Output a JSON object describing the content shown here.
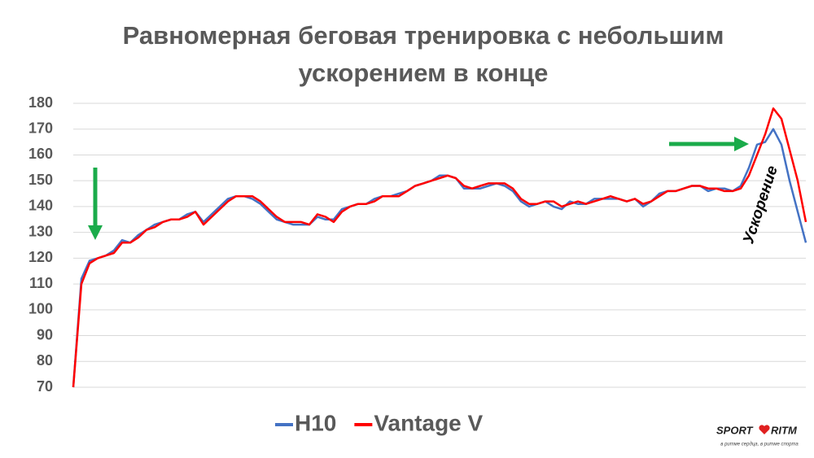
{
  "chart_data": {
    "type": "line",
    "title": [
      "Равномерная беговая тренировка с небольшим",
      "ускорением в конце"
    ],
    "ylim": [
      70,
      180
    ],
    "yticks": [
      70,
      80,
      90,
      100,
      110,
      120,
      130,
      140,
      150,
      160,
      170,
      180
    ],
    "grid": true,
    "legend": "bottom",
    "annotation": "Ускорение",
    "series": [
      {
        "name": "H10",
        "color": "#4472c4",
        "values": [
          70,
          112,
          119,
          120,
          121,
          123,
          127,
          126,
          129,
          131,
          133,
          134,
          135,
          135,
          137,
          138,
          134,
          137,
          140,
          143,
          144,
          144,
          143,
          141,
          138,
          135,
          134,
          133,
          133,
          133,
          136,
          135,
          135,
          139,
          140,
          141,
          141,
          143,
          144,
          144,
          145,
          146,
          148,
          149,
          150,
          152,
          152,
          151,
          147,
          147,
          147,
          148,
          149,
          148,
          146,
          142,
          140,
          141,
          142,
          140,
          139,
          142,
          141,
          141,
          143,
          143,
          143,
          143,
          142,
          143,
          140,
          142,
          145,
          146,
          146,
          147,
          148,
          148,
          146,
          147,
          147,
          146,
          148,
          155,
          164,
          165,
          170,
          164,
          150,
          138,
          126
        ]
      },
      {
        "name": "Vantage V",
        "color": "#ff0000",
        "values": [
          70,
          110,
          118,
          120,
          121,
          122,
          126,
          126,
          128,
          131,
          132,
          134,
          135,
          135,
          136,
          138,
          133,
          136,
          139,
          142,
          144,
          144,
          144,
          142,
          139,
          136,
          134,
          134,
          134,
          133,
          137,
          136,
          134,
          138,
          140,
          141,
          141,
          142,
          144,
          144,
          144,
          146,
          148,
          149,
          150,
          151,
          152,
          151,
          148,
          147,
          148,
          149,
          149,
          149,
          147,
          143,
          141,
          141,
          142,
          142,
          140,
          141,
          142,
          141,
          142,
          143,
          144,
          143,
          142,
          143,
          141,
          142,
          144,
          146,
          146,
          147,
          148,
          148,
          147,
          147,
          146,
          146,
          147,
          152,
          160,
          168,
          178,
          174,
          162,
          150,
          134
        ]
      }
    ]
  },
  "logo": {
    "left": "SPORT",
    "right": "RITM",
    "tagline": "в ритме сердца, в ритме спорта"
  }
}
